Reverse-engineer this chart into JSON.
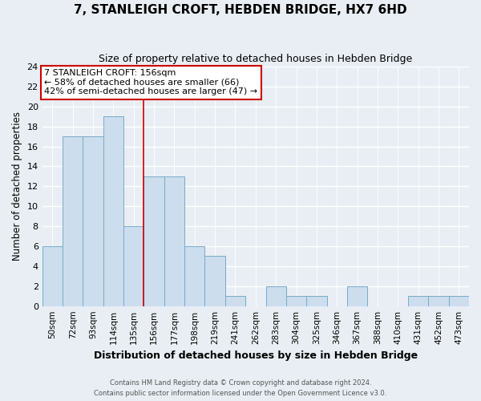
{
  "title": "7, STANLEIGH CROFT, HEBDEN BRIDGE, HX7 6HD",
  "subtitle": "Size of property relative to detached houses in Hebden Bridge",
  "xlabel": "Distribution of detached houses by size in Hebden Bridge",
  "ylabel": "Number of detached properties",
  "bin_labels": [
    "50sqm",
    "72sqm",
    "93sqm",
    "114sqm",
    "135sqm",
    "156sqm",
    "177sqm",
    "198sqm",
    "219sqm",
    "241sqm",
    "262sqm",
    "283sqm",
    "304sqm",
    "325sqm",
    "346sqm",
    "367sqm",
    "388sqm",
    "410sqm",
    "431sqm",
    "452sqm",
    "473sqm"
  ],
  "bar_heights": [
    6,
    17,
    17,
    19,
    8,
    13,
    13,
    6,
    5,
    1,
    0,
    2,
    1,
    1,
    0,
    2,
    0,
    0,
    1,
    1,
    1
  ],
  "bar_color": "#ccdded",
  "bar_edgecolor": "#7aaac8",
  "highlight_line_index": 5,
  "highlight_line_color": "#cc0000",
  "ylim": [
    0,
    24
  ],
  "yticks": [
    0,
    2,
    4,
    6,
    8,
    10,
    12,
    14,
    16,
    18,
    20,
    22,
    24
  ],
  "annotation_title": "7 STANLEIGH CROFT: 156sqm",
  "annotation_line1": "← 58% of detached houses are smaller (66)",
  "annotation_line2": "42% of semi-detached houses are larger (47) →",
  "annotation_box_color": "#ffffff",
  "annotation_box_edgecolor": "#cc0000",
  "footer_line1": "Contains HM Land Registry data © Crown copyright and database right 2024.",
  "footer_line2": "Contains public sector information licensed under the Open Government Licence v3.0.",
  "background_color": "#e8eef4",
  "grid_color": "#ffffff"
}
